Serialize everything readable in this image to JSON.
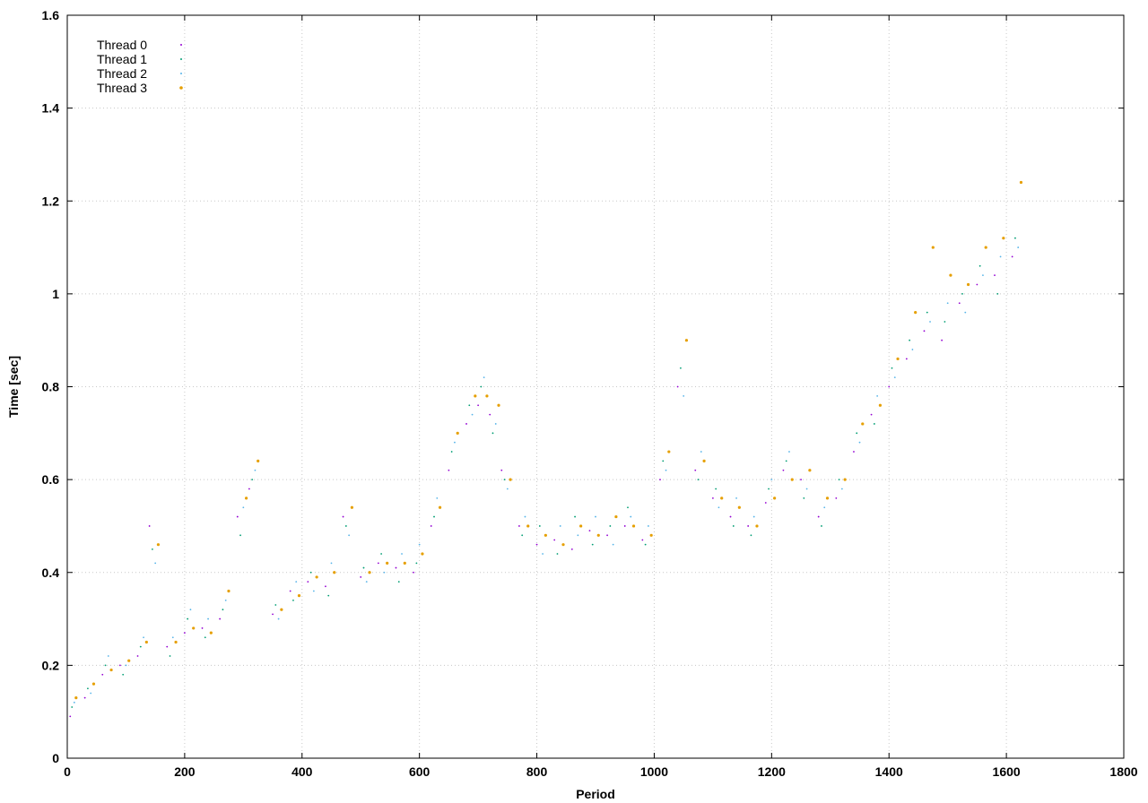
{
  "chart_data": {
    "type": "scatter",
    "title": "",
    "xlabel": "Period",
    "ylabel": "Time [sec]",
    "xlim": [
      0,
      1800
    ],
    "ylim": [
      0,
      1.6
    ],
    "xticks": [
      0,
      200,
      400,
      600,
      800,
      1000,
      1200,
      1400,
      1600,
      1800
    ],
    "yticks": [
      0,
      0.2,
      0.4,
      0.6,
      0.8,
      1,
      1.2,
      1.4,
      1.6
    ],
    "ytick_labels": [
      "0",
      "0.2",
      "0.4",
      "0.6",
      "0.8",
      "1",
      "1.2",
      "1.4",
      "1.6"
    ],
    "grid": true,
    "legend_position": "top-left",
    "series": [
      {
        "name": "Thread 0",
        "color": "#9400d3",
        "marker": "dot",
        "x": [
          5,
          30,
          60,
          90,
          120,
          140,
          170,
          200,
          230,
          260,
          290,
          310,
          350,
          380,
          410,
          440,
          470,
          500,
          530,
          560,
          590,
          620,
          650,
          680,
          700,
          720,
          740,
          770,
          800,
          830,
          860,
          890,
          920,
          950,
          980,
          1010,
          1040,
          1070,
          1100,
          1130,
          1160,
          1190,
          1220,
          1250,
          1280,
          1310,
          1340,
          1370,
          1400,
          1430,
          1460,
          1490,
          1520,
          1550,
          1580,
          1610
        ],
        "y": [
          0.09,
          0.13,
          0.18,
          0.2,
          0.22,
          0.5,
          0.24,
          0.27,
          0.28,
          0.3,
          0.52,
          0.58,
          0.31,
          0.36,
          0.38,
          0.37,
          0.52,
          0.39,
          0.42,
          0.41,
          0.4,
          0.5,
          0.62,
          0.72,
          0.76,
          0.74,
          0.62,
          0.5,
          0.46,
          0.47,
          0.45,
          0.49,
          0.48,
          0.5,
          0.47,
          0.6,
          0.8,
          0.62,
          0.56,
          0.52,
          0.5,
          0.55,
          0.62,
          0.6,
          0.52,
          0.56,
          0.66,
          0.74,
          0.8,
          0.86,
          0.92,
          0.9,
          0.98,
          1.02,
          1.04,
          1.08
        ]
      },
      {
        "name": "Thread 1",
        "color": "#009e73",
        "marker": "dot",
        "x": [
          8,
          35,
          65,
          95,
          125,
          145,
          175,
          205,
          235,
          265,
          295,
          315,
          355,
          385,
          415,
          445,
          475,
          505,
          535,
          565,
          595,
          625,
          655,
          685,
          705,
          725,
          745,
          775,
          805,
          835,
          865,
          895,
          925,
          955,
          985,
          1015,
          1045,
          1075,
          1105,
          1135,
          1165,
          1195,
          1225,
          1255,
          1285,
          1315,
          1345,
          1375,
          1405,
          1435,
          1465,
          1495,
          1525,
          1555,
          1585,
          1615
        ],
        "y": [
          0.11,
          0.15,
          0.2,
          0.18,
          0.24,
          0.45,
          0.22,
          0.3,
          0.26,
          0.32,
          0.48,
          0.6,
          0.33,
          0.34,
          0.4,
          0.35,
          0.5,
          0.41,
          0.44,
          0.38,
          0.42,
          0.52,
          0.66,
          0.76,
          0.8,
          0.7,
          0.6,
          0.48,
          0.5,
          0.44,
          0.52,
          0.46,
          0.5,
          0.54,
          0.46,
          0.64,
          0.84,
          0.6,
          0.58,
          0.5,
          0.48,
          0.58,
          0.64,
          0.56,
          0.5,
          0.6,
          0.7,
          0.72,
          0.84,
          0.9,
          0.96,
          0.94,
          1.0,
          1.06,
          1.0,
          1.12
        ]
      },
      {
        "name": "Thread 2",
        "color": "#56b4e9",
        "marker": "dot",
        "x": [
          12,
          40,
          70,
          100,
          130,
          150,
          180,
          210,
          240,
          270,
          300,
          320,
          360,
          390,
          420,
          450,
          480,
          510,
          540,
          570,
          600,
          630,
          660,
          690,
          710,
          730,
          750,
          780,
          810,
          840,
          870,
          900,
          930,
          960,
          990,
          1020,
          1050,
          1080,
          1110,
          1140,
          1170,
          1200,
          1230,
          1260,
          1290,
          1320,
          1350,
          1380,
          1410,
          1440,
          1470,
          1500,
          1530,
          1560,
          1590,
          1620
        ],
        "y": [
          0.12,
          0.14,
          0.22,
          0.2,
          0.26,
          0.42,
          0.26,
          0.32,
          0.3,
          0.34,
          0.54,
          0.62,
          0.3,
          0.38,
          0.36,
          0.42,
          0.48,
          0.38,
          0.4,
          0.44,
          0.46,
          0.56,
          0.68,
          0.74,
          0.82,
          0.72,
          0.58,
          0.52,
          0.44,
          0.5,
          0.48,
          0.52,
          0.46,
          0.52,
          0.5,
          0.62,
          0.78,
          0.66,
          0.54,
          0.56,
          0.52,
          0.6,
          0.66,
          0.58,
          0.54,
          0.58,
          0.68,
          0.78,
          0.82,
          0.88,
          0.94,
          0.98,
          0.96,
          1.04,
          1.08,
          1.1
        ]
      },
      {
        "name": "Thread 3",
        "color": "#e69f00",
        "marker": "dot",
        "x": [
          15,
          45,
          75,
          105,
          135,
          155,
          185,
          215,
          245,
          275,
          305,
          325,
          365,
          395,
          425,
          455,
          485,
          515,
          545,
          575,
          605,
          635,
          665,
          695,
          715,
          735,
          755,
          785,
          815,
          845,
          875,
          905,
          935,
          965,
          995,
          1025,
          1055,
          1085,
          1115,
          1145,
          1175,
          1205,
          1235,
          1265,
          1295,
          1325,
          1355,
          1385,
          1415,
          1445,
          1475,
          1505,
          1535,
          1565,
          1595,
          1625
        ],
        "y": [
          0.13,
          0.16,
          0.19,
          0.21,
          0.25,
          0.46,
          0.25,
          0.28,
          0.27,
          0.36,
          0.56,
          0.64,
          0.32,
          0.35,
          0.39,
          0.4,
          0.54,
          0.4,
          0.42,
          0.42,
          0.44,
          0.54,
          0.7,
          0.78,
          0.78,
          0.76,
          0.6,
          0.5,
          0.48,
          0.46,
          0.5,
          0.48,
          0.52,
          0.5,
          0.48,
          0.66,
          0.9,
          0.64,
          0.56,
          0.54,
          0.5,
          0.56,
          0.6,
          0.62,
          0.56,
          0.6,
          0.72,
          0.76,
          0.86,
          0.96,
          1.1,
          1.04,
          1.02,
          1.1,
          1.12,
          1.24
        ]
      }
    ]
  }
}
